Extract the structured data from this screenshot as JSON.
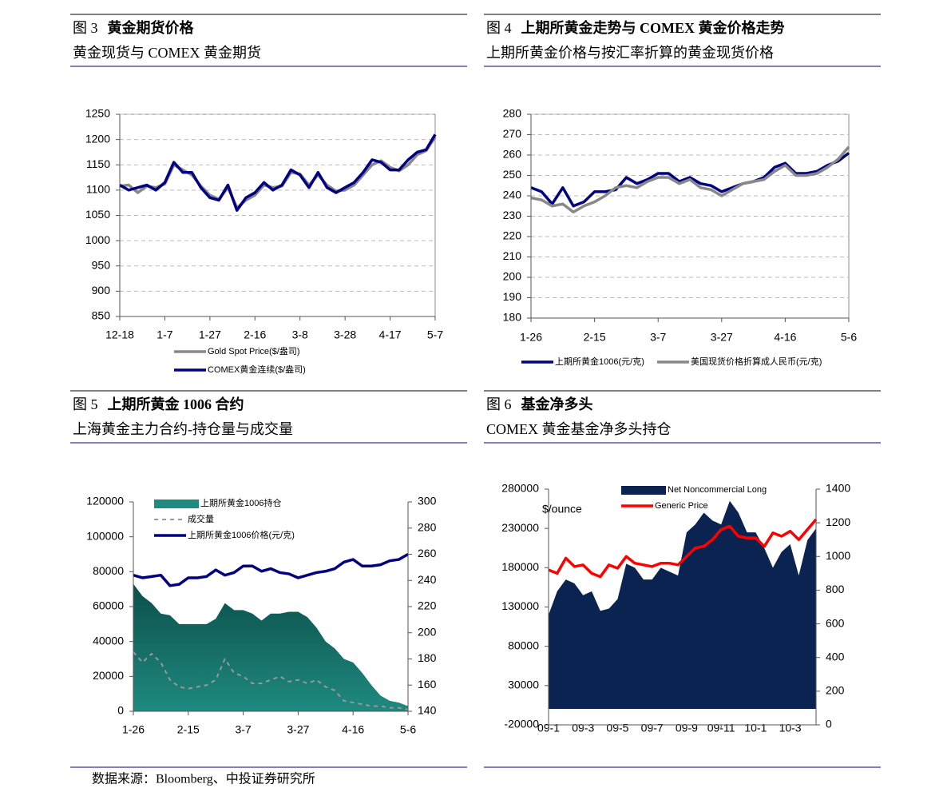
{
  "chart_data": [
    {
      "type": "line",
      "label": "图 3",
      "title": "黄金期货价格",
      "subtitle": "黄金现货与 COMEX 黄金期货",
      "categories": [
        "12-18",
        null,
        null,
        null,
        null,
        "1-7",
        null,
        null,
        null,
        null,
        "1-27",
        null,
        null,
        null,
        null,
        "2-16",
        null,
        null,
        null,
        null,
        "3-8",
        null,
        null,
        null,
        null,
        "3-28",
        null,
        null,
        null,
        null,
        "4-17",
        null,
        null,
        null,
        null,
        "5-7"
      ],
      "series": [
        {
          "name": "Gold Spot Price($/盎司)",
          "color": "#888888",
          "values": [
            1108,
            1110,
            1095,
            1108,
            1105,
            1112,
            1150,
            1140,
            1130,
            1108,
            1090,
            1082,
            1105,
            1065,
            1080,
            1090,
            1110,
            1105,
            1108,
            1135,
            1132,
            1110,
            1130,
            1110,
            1098,
            1100,
            1110,
            1130,
            1150,
            1158,
            1145,
            1138,
            1150,
            1170,
            1178,
            1205
          ]
        },
        {
          "name": "COMEX黄金连续($/盎司)",
          "color": "#000080",
          "values": [
            1110,
            1100,
            1105,
            1110,
            1100,
            1115,
            1155,
            1135,
            1135,
            1105,
            1085,
            1080,
            1110,
            1060,
            1085,
            1095,
            1115,
            1100,
            1110,
            1140,
            1130,
            1105,
            1135,
            1105,
            1095,
            1105,
            1115,
            1135,
            1160,
            1155,
            1140,
            1140,
            1160,
            1175,
            1180,
            1210
          ]
        }
      ],
      "ylim": [
        850,
        1250
      ],
      "yticks": [
        850,
        900,
        950,
        1000,
        1050,
        1100,
        1150,
        1200,
        1250
      ],
      "grid": true
    },
    {
      "type": "line",
      "label": "图 4",
      "title": "上期所黄金走势与 COMEX 黄金价格走势",
      "subtitle": "上期所黄金价格与按汇率折算的黄金现货价格",
      "categories": [
        "1-26",
        null,
        null,
        null,
        null,
        null,
        "2-15",
        null,
        null,
        null,
        null,
        null,
        "3-7",
        null,
        null,
        null,
        null,
        null,
        "3-27",
        null,
        null,
        null,
        null,
        null,
        "4-16",
        null,
        null,
        null,
        null,
        null,
        "5-6"
      ],
      "series": [
        {
          "name": "上期所黄金1006(元/克)",
          "color": "#000080",
          "values": [
            244,
            242,
            236,
            244,
            235,
            237,
            242,
            242,
            243,
            249,
            246,
            248,
            251,
            251,
            247,
            249,
            246,
            245,
            242,
            244,
            246,
            247,
            249,
            254,
            256,
            251,
            251,
            252,
            255,
            257,
            261
          ]
        },
        {
          "name": "美国现货价格折算成人民币(元/克)",
          "color": "#888888",
          "values": [
            239,
            238,
            235,
            236,
            232,
            235,
            237,
            240,
            244,
            245,
            244,
            247,
            249,
            249,
            246,
            248,
            244,
            243,
            240,
            243,
            246,
            247,
            248,
            252,
            255,
            250,
            250,
            251,
            254,
            258,
            264
          ]
        }
      ],
      "ylim": [
        180,
        280
      ],
      "yticks": [
        180,
        190,
        200,
        210,
        220,
        230,
        240,
        250,
        260,
        270,
        280
      ],
      "grid": true
    },
    {
      "type": "combo",
      "label": "图 5",
      "title": "上期所黄金 1006 合约",
      "subtitle": "上海黄金主力合约-持仓量与成交量",
      "categories": [
        "1-26",
        null,
        null,
        null,
        null,
        null,
        "2-15",
        null,
        null,
        null,
        null,
        null,
        "3-7",
        null,
        null,
        null,
        null,
        null,
        "3-27",
        null,
        null,
        null,
        null,
        null,
        "4-16",
        null,
        null,
        null,
        null,
        null,
        "5-6"
      ],
      "series": [
        {
          "name": "上期所黄金1006持仓",
          "color": "#1f8a80",
          "kind": "area",
          "values": [
            73000,
            66000,
            62000,
            56000,
            55000,
            50000,
            50000,
            50000,
            50000,
            53000,
            62000,
            58000,
            58000,
            56000,
            52000,
            56000,
            56000,
            57000,
            57000,
            54000,
            48000,
            40000,
            36000,
            30000,
            28000,
            22000,
            15000,
            9000,
            6000,
            5000,
            3000
          ]
        },
        {
          "name": "成交量",
          "color": "#999999",
          "kind": "dashed",
          "values": [
            34000,
            28000,
            33000,
            28000,
            18000,
            14000,
            13000,
            14000,
            15000,
            18000,
            30000,
            22000,
            20000,
            16000,
            16000,
            18000,
            20000,
            17000,
            18000,
            16000,
            18000,
            14000,
            12000,
            6000,
            5000,
            4000,
            3000,
            3000,
            2000,
            2000,
            1000
          ]
        },
        {
          "name": "上期所黄金1006价格(元/克)",
          "color": "#000080",
          "kind": "line",
          "axis": "y2",
          "values": [
            244,
            242,
            243,
            244,
            236,
            237,
            242,
            242,
            243,
            248,
            244,
            246,
            251,
            251,
            247,
            249,
            246,
            245,
            242,
            244,
            246,
            247,
            249,
            254,
            256,
            251,
            251,
            252,
            255,
            256,
            260
          ]
        }
      ],
      "ylim": [
        0,
        120000
      ],
      "yticks": [
        0,
        20000,
        40000,
        60000,
        80000,
        100000,
        120000
      ],
      "y2lim": [
        140,
        300
      ],
      "y2ticks": [
        140,
        160,
        180,
        200,
        220,
        240,
        260,
        280,
        300
      ],
      "grid": false
    },
    {
      "type": "combo",
      "label": "图 6",
      "title": "基金净多头",
      "subtitle": "COMEX 黄金基金净多头持仓",
      "ylabel": "$/ounce",
      "categories": [
        "09-1",
        null,
        null,
        null,
        "09-3",
        null,
        null,
        null,
        "09-5",
        null,
        null,
        null,
        "09-7",
        null,
        null,
        null,
        "09-9",
        null,
        null,
        null,
        "09-11",
        null,
        null,
        null,
        "10-1",
        null,
        null,
        null,
        "10-3",
        null,
        null,
        null
      ],
      "series": [
        {
          "name": "Net Noncommercial Long",
          "color": "#0a2350",
          "kind": "area",
          "values": [
            120000,
            150000,
            165000,
            160000,
            145000,
            150000,
            125000,
            128000,
            140000,
            185000,
            180000,
            165000,
            165000,
            180000,
            175000,
            170000,
            225000,
            235000,
            250000,
            240000,
            235000,
            265000,
            250000,
            225000,
            225000,
            205000,
            180000,
            200000,
            210000,
            170000,
            215000,
            230000
          ]
        },
        {
          "name": "Generic Price",
          "color": "#ff0000",
          "kind": "line",
          "axis": "y2",
          "values": [
            920,
            900,
            990,
            940,
            950,
            900,
            880,
            950,
            930,
            1000,
            960,
            950,
            940,
            960,
            960,
            950,
            1000,
            1050,
            1060,
            1100,
            1160,
            1180,
            1120,
            1110,
            1110,
            1060,
            1140,
            1120,
            1150,
            1100,
            1160,
            1220
          ]
        }
      ],
      "ylim": [
        -20000,
        280000
      ],
      "yticks": [
        -20000,
        30000,
        80000,
        130000,
        180000,
        230000,
        280000
      ],
      "y2lim": [
        0,
        1400
      ],
      "y2ticks": [
        0,
        200,
        400,
        600,
        800,
        1000,
        1200,
        1400
      ],
      "grid": false
    }
  ],
  "source": "数据来源：Bloomberg、中投证券研究所"
}
